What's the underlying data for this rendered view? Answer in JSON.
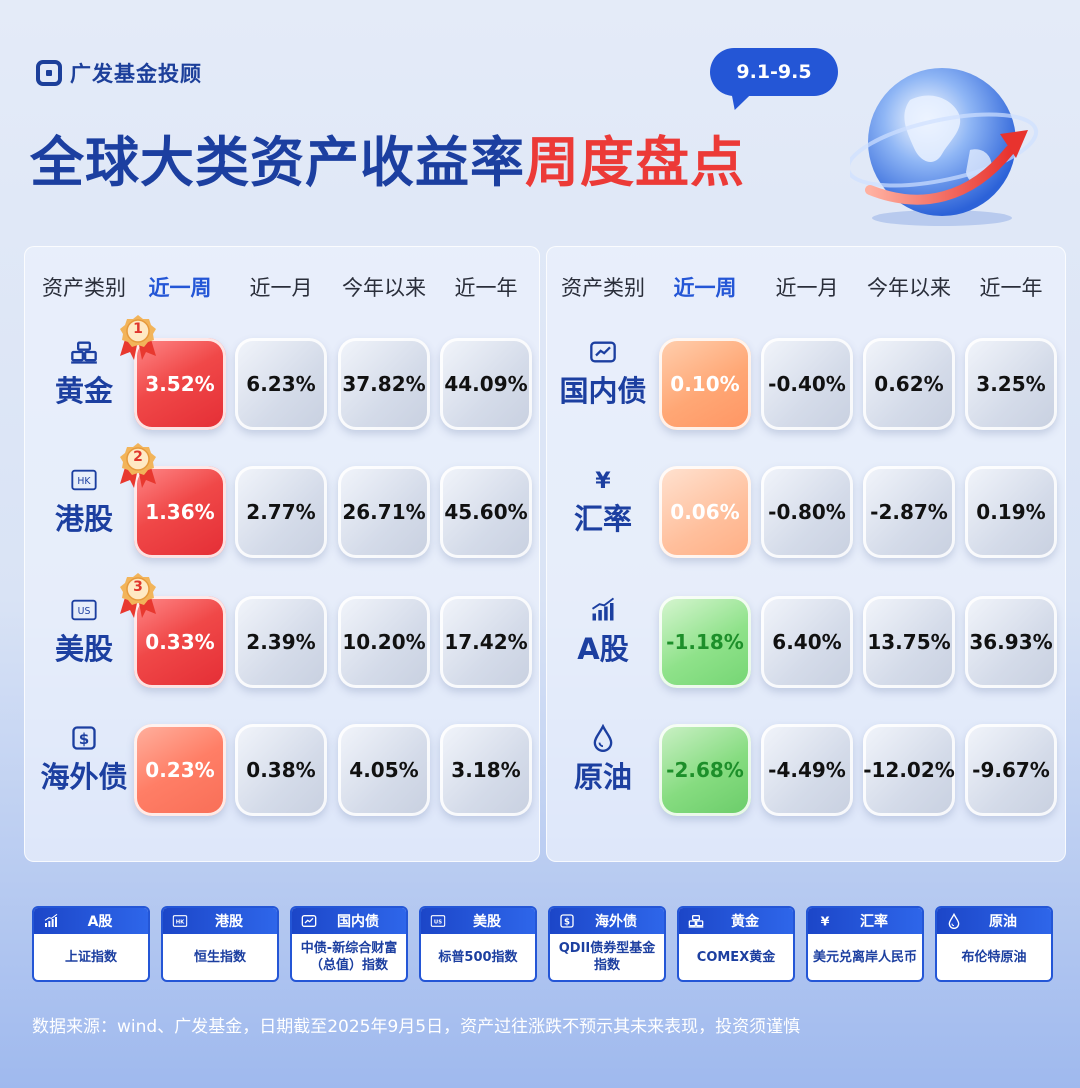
{
  "brand": {
    "name": "广发基金投顾",
    "icon": "fund-logo-icon"
  },
  "date_bubble": "9.1-9.5",
  "title": {
    "part1": "全球大类资产收益率",
    "part2": "周度盘点"
  },
  "colors": {
    "accent_blue": "#2456d6",
    "title_blue": "#1c3fa0",
    "title_red": "#ec3a37",
    "gain_red": "#e42d35",
    "loss_green": "#1d8f2a"
  },
  "headers": [
    "资产类别",
    "近一周",
    "近一月",
    "今年以来",
    "近一年"
  ],
  "left_table": [
    {
      "name": "黄金",
      "icon": "gold-bar-icon",
      "rank": "1",
      "week": "3.52%",
      "month": "6.23%",
      "ytd": "37.82%",
      "year": "44.09%"
    },
    {
      "name": "港股",
      "icon": "hk-icon",
      "icon_text": "HK",
      "rank": "2",
      "week": "1.36%",
      "month": "2.77%",
      "ytd": "26.71%",
      "year": "45.60%"
    },
    {
      "name": "美股",
      "icon": "us-icon",
      "icon_text": "US",
      "rank": "3",
      "week": "0.33%",
      "month": "2.39%",
      "ytd": "10.20%",
      "year": "17.42%"
    },
    {
      "name": "海外债",
      "icon": "bond-dollar-icon",
      "week": "0.23%",
      "month": "0.38%",
      "ytd": "4.05%",
      "year": "3.18%"
    }
  ],
  "right_table": [
    {
      "name": "国内债",
      "icon": "domestic-bond-icon",
      "week": "0.10%",
      "month": "-0.40%",
      "ytd": "0.62%",
      "year": "3.25%"
    },
    {
      "name": "汇率",
      "icon": "yen-icon",
      "icon_text": "¥",
      "week": "0.06%",
      "month": "-0.80%",
      "ytd": "-2.87%",
      "year": "0.19%"
    },
    {
      "name": "A股",
      "icon": "stock-chart-icon",
      "week": "-1.18%",
      "month": "6.40%",
      "ytd": "13.75%",
      "year": "36.93%"
    },
    {
      "name": "原油",
      "icon": "oil-drop-icon",
      "week": "-2.68%",
      "month": "-4.49%",
      "ytd": "-12.02%",
      "year": "-9.67%"
    }
  ],
  "legend": [
    {
      "name": "A股",
      "icon": "stock-chart-icon",
      "index": "上证指数"
    },
    {
      "name": "港股",
      "icon": "hk-icon",
      "icon_text": "HK",
      "index": "恒生指数"
    },
    {
      "name": "国内债",
      "icon": "domestic-bond-icon",
      "index": "中债-新综合财富（总值）指数"
    },
    {
      "name": "美股",
      "icon": "us-icon",
      "icon_text": "US",
      "index": "标普500指数"
    },
    {
      "name": "海外债",
      "icon": "bond-dollar-icon",
      "index": "QDII债券型基金指数"
    },
    {
      "name": "黄金",
      "icon": "gold-bar-icon",
      "index": "COMEX黄金"
    },
    {
      "name": "汇率",
      "icon": "yen-icon",
      "icon_text": "¥",
      "index": "美元兑离岸人民币"
    },
    {
      "name": "原油",
      "icon": "oil-drop-icon",
      "index": "布伦特原油"
    }
  ],
  "footer": "数据来源：wind、广发基金，日期截至2025年9月5日，资产过往涨跌不预示其未来表现，投资须谨慎"
}
